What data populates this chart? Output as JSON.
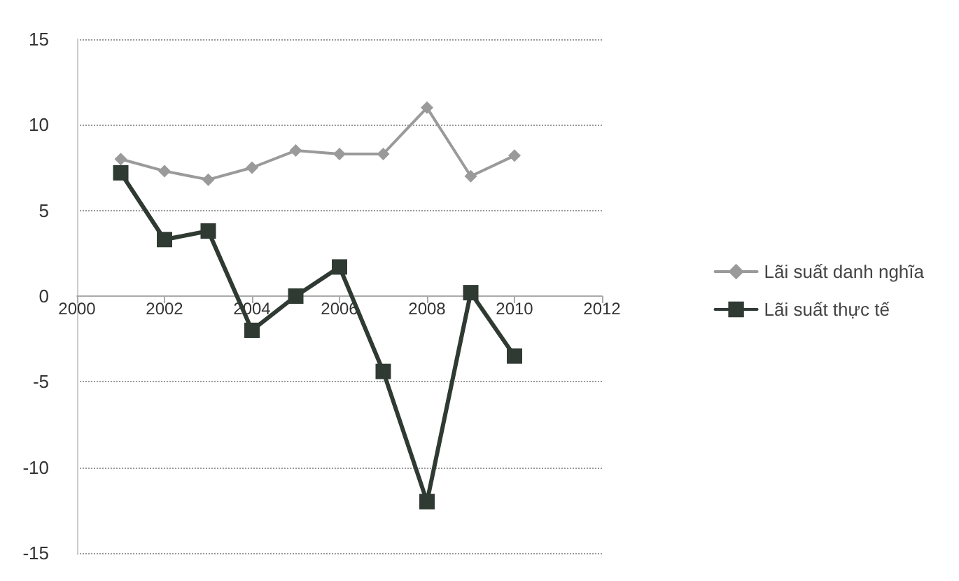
{
  "chart_data": {
    "type": "line",
    "x": [
      2001,
      2002,
      2003,
      2004,
      2005,
      2006,
      2007,
      2008,
      2009,
      2010
    ],
    "series": [
      {
        "name": "Lãi suất danh nghĩa",
        "color": "#9a9a9a",
        "marker": "diamond",
        "values": [
          8,
          7.3,
          6.8,
          7.5,
          8.5,
          8.3,
          8.3,
          11,
          7,
          8.2
        ]
      },
      {
        "name": "Lãi suất thực tế",
        "color": "#2f3a33",
        "marker": "square",
        "values": [
          7.2,
          3.3,
          3.8,
          -2,
          0,
          1.7,
          -4.4,
          -12,
          0.2,
          -3.5
        ]
      }
    ],
    "xlim": [
      2000,
      2012
    ],
    "xticks": [
      2000,
      2002,
      2004,
      2006,
      2008,
      2010,
      2012
    ],
    "ylim": [
      -15,
      15
    ],
    "yticks": [
      -15,
      -10,
      -5,
      0,
      5,
      10,
      15
    ],
    "grid": "y",
    "legend": "right",
    "line_style": "solid"
  }
}
